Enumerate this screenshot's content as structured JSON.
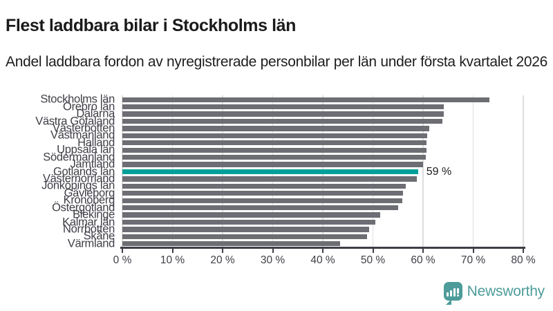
{
  "title": "Flest laddbara bilar i Stockholms län",
  "subtitle": "Andel laddbara fordon av nyregistrerade personbilar per län under första kvartalet 2026",
  "chart_data": {
    "type": "bar",
    "orientation": "horizontal",
    "categories": [
      "Stockholms län",
      "Örebro län",
      "Dalarna",
      "Västra Götaland",
      "Västerbotten",
      "Västmanland",
      "Halland",
      "Uppsala län",
      "Södermanland",
      "Jämtland",
      "Gotlands län",
      "Västernorrland",
      "Jönköpings län",
      "Gävleborg",
      "Kronoberg",
      "Östergötland",
      "Blekinge",
      "Kalmar län",
      "Norrbotten",
      "Skåne",
      "Värmland"
    ],
    "values": [
      73.3,
      64.2,
      64.1,
      63.8,
      61.3,
      60.8,
      60.7,
      60.7,
      60.6,
      60.0,
      59.0,
      58.7,
      56.5,
      56.0,
      55.9,
      55.1,
      51.5,
      50.5,
      49.3,
      48.8,
      43.5
    ],
    "highlight": {
      "category": "Gotlands län",
      "index": 10,
      "value": 59,
      "annotation": "59 %"
    },
    "x_ticks": [
      "0 %",
      "10 %",
      "20 %",
      "30 %",
      "40 %",
      "50 %",
      "60 %",
      "70 %",
      "80 %"
    ],
    "x_tick_values": [
      0,
      10,
      20,
      30,
      40,
      50,
      60,
      70,
      80
    ],
    "xlim": [
      0,
      80
    ],
    "grid": true,
    "legend": false,
    "bar_color": "#6d6d74",
    "highlight_color": "#00a09a",
    "axis_color": "#3e3e46",
    "grid_color": "#dedede",
    "title_color": "#1a1a1a",
    "annotation_color": "#1d1d1d"
  },
  "branding": {
    "name": "Newsworthy",
    "color": "#4d9c9a",
    "icon": "bar-chart-speech-bubble"
  }
}
